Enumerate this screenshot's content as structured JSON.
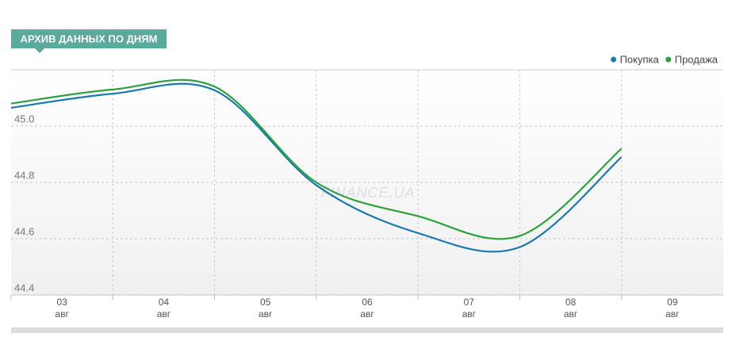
{
  "header": {
    "title": "АРХИВ ДАННЫХ ПО ДНЯМ"
  },
  "chart_data": {
    "type": "line",
    "categories": [
      "03",
      "04",
      "05",
      "06",
      "07",
      "08",
      "09"
    ],
    "category_sublabels": [
      "авг",
      "авг",
      "авг",
      "авг",
      "авг",
      "авг",
      "авг"
    ],
    "series": [
      {
        "name": "Покупка",
        "color": "#1a7ab0",
        "values": [
          45.065,
          45.115,
          45.127,
          44.79,
          44.62,
          44.57,
          44.89
        ]
      },
      {
        "name": "Продажа",
        "color": "#2ba23c",
        "values": [
          45.08,
          45.13,
          45.14,
          44.8,
          44.68,
          44.61,
          44.92
        ]
      }
    ],
    "ylim": [
      44.4,
      45.2
    ],
    "yticks": [
      44.4,
      44.6,
      44.8,
      {
        "value": 45.0,
        "label": "45.0"
      }
    ],
    "grid": true,
    "legend": "top-right",
    "watermark": "FINANCE.UA"
  }
}
